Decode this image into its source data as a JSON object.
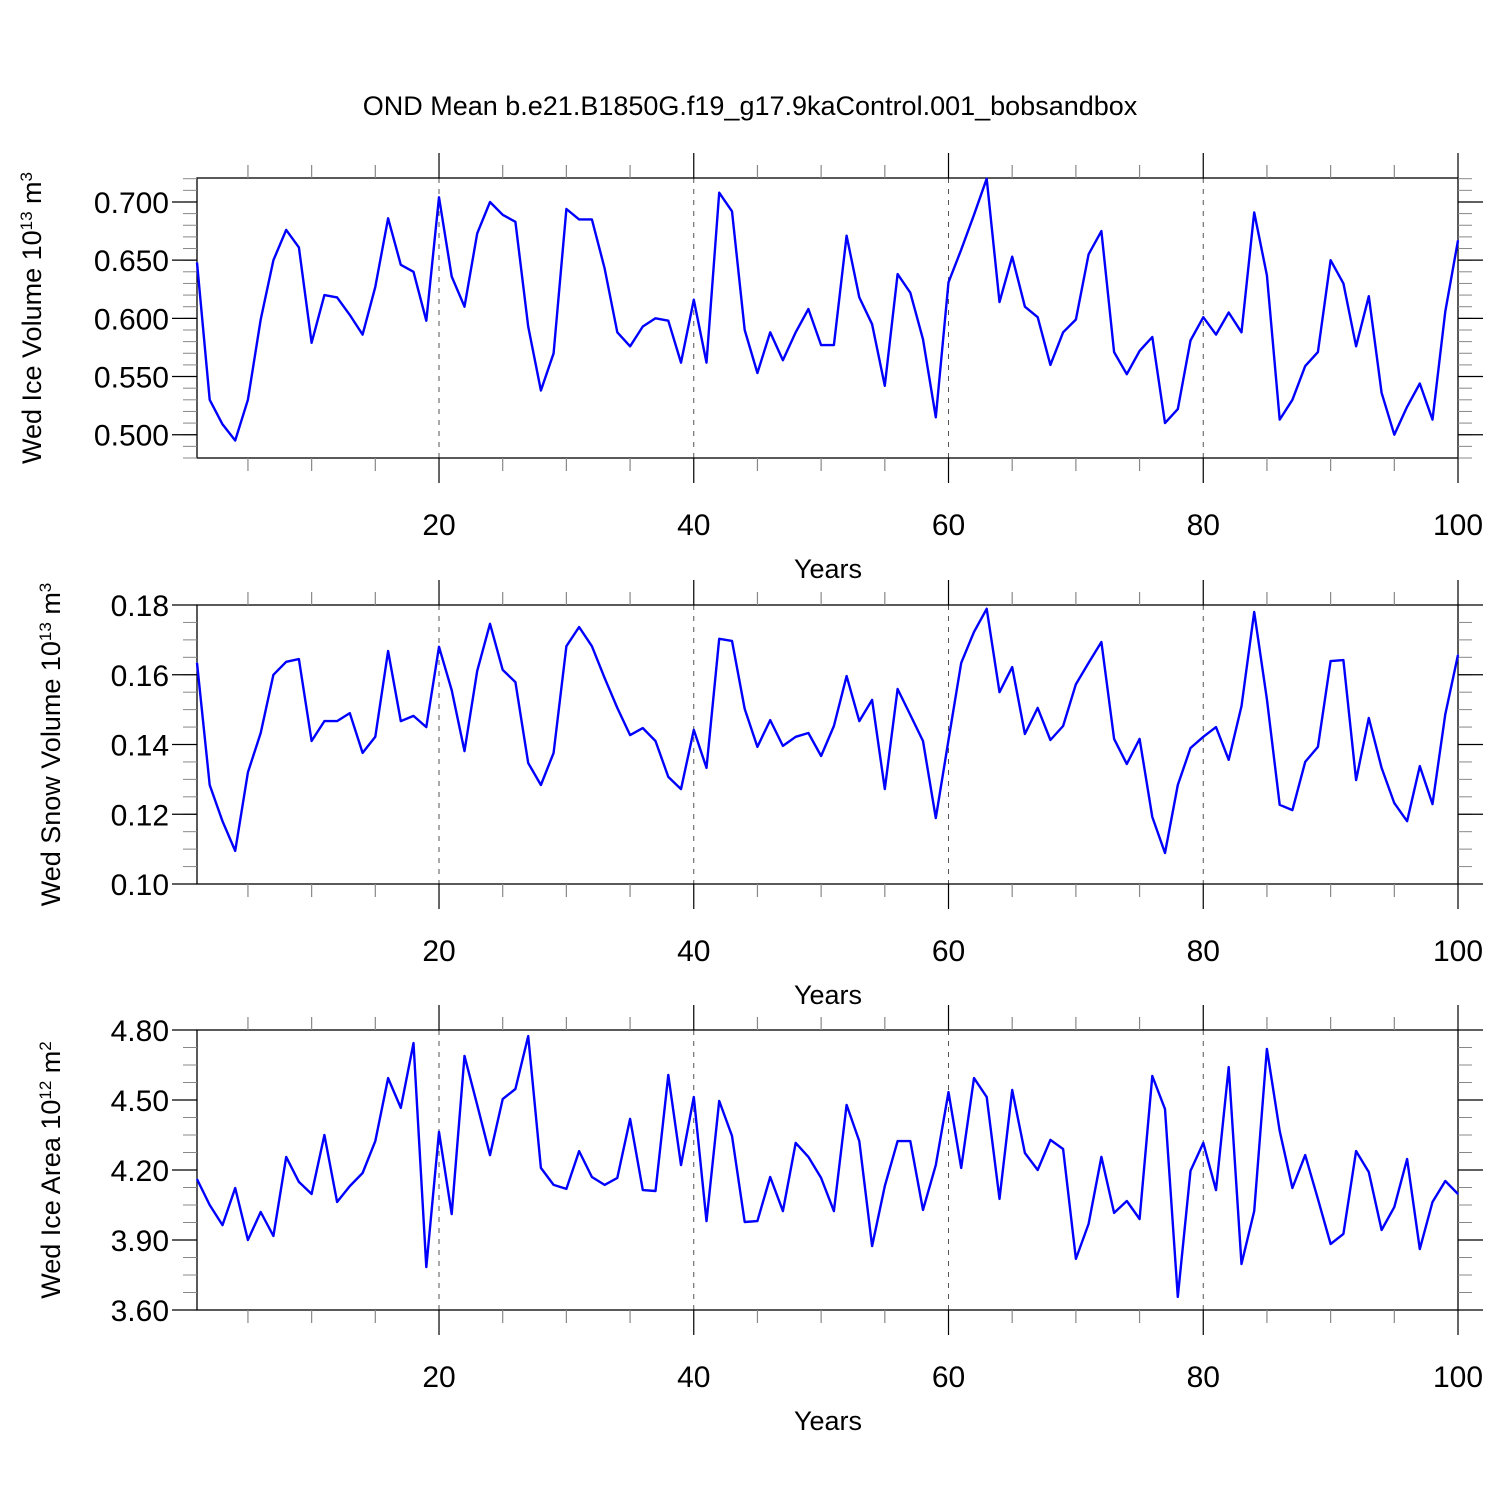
{
  "title": "OND Mean b.e21.B1850G.f19_g17.9kaControl.001_bobsandbox",
  "line_color": "#0000ff",
  "chart_data": [
    {
      "type": "line",
      "ylabel": "Wed Ice Volume 10",
      "ylabel_exp": "13",
      "ylabel_unit": " m",
      "ylabel_unit_exp": "3",
      "xlabel": "Years",
      "xlim": [
        1,
        100
      ],
      "ylim": [
        0.48,
        0.7206
      ],
      "xticks": [
        20,
        40,
        60,
        80,
        100
      ],
      "xtick_labels": [
        "20",
        "40",
        "60",
        "80",
        "100"
      ],
      "yticks": [
        0.5,
        0.55,
        0.6,
        0.65,
        0.7
      ],
      "ytick_labels": [
        "0.500",
        "0.550",
        "0.600",
        "0.650",
        "0.700"
      ],
      "yminor": 0.01,
      "values": [
        0.648,
        0.53,
        0.509,
        0.495,
        0.53,
        0.599,
        0.65,
        0.676,
        0.661,
        0.579,
        0.62,
        0.618,
        0.603,
        0.586,
        0.627,
        0.686,
        0.646,
        0.64,
        0.598,
        0.704,
        0.636,
        0.61,
        0.673,
        0.7,
        0.689,
        0.683,
        0.593,
        0.538,
        0.57,
        0.694,
        0.685,
        0.685,
        0.643,
        0.588,
        0.576,
        0.593,
        0.6,
        0.598,
        0.562,
        0.616,
        0.562,
        0.708,
        0.692,
        0.59,
        0.553,
        0.588,
        0.564,
        0.588,
        0.608,
        0.577,
        0.577,
        0.671,
        0.618,
        0.595,
        0.542,
        0.638,
        0.622,
        0.582,
        0.515,
        0.631,
        0.659,
        0.689,
        0.72,
        0.614,
        0.653,
        0.61,
        0.601,
        0.56,
        0.588,
        0.599,
        0.655,
        0.675,
        0.571,
        0.552,
        0.572,
        0.584,
        0.51,
        0.522,
        0.581,
        0.601,
        0.586,
        0.605,
        0.588,
        0.691,
        0.637,
        0.513,
        0.53,
        0.559,
        0.571,
        0.65,
        0.63,
        0.576,
        0.619,
        0.536,
        0.5,
        0.524,
        0.544,
        0.513,
        0.606,
        0.667
      ]
    },
    {
      "type": "line",
      "ylabel": "Wed Snow Volume 10",
      "ylabel_exp": "13",
      "ylabel_unit": " m",
      "ylabel_unit_exp": "3",
      "xlabel": "Years",
      "xlim": [
        1,
        100
      ],
      "ylim": [
        0.1,
        0.18
      ],
      "xticks": [
        20,
        40,
        60,
        80,
        100
      ],
      "xtick_labels": [
        "20",
        "40",
        "60",
        "80",
        "100"
      ],
      "yticks": [
        0.1,
        0.12,
        0.14,
        0.16,
        0.18
      ],
      "ytick_labels": [
        "0.10",
        "0.12",
        "0.14",
        "0.16",
        "0.18"
      ],
      "yminor": 0.005,
      "values": [
        0.1634,
        0.1284,
        0.118,
        0.1095,
        0.132,
        0.1433,
        0.16,
        0.1637,
        0.1645,
        0.141,
        0.1467,
        0.1467,
        0.149,
        0.1376,
        0.1422,
        0.1668,
        0.1467,
        0.1482,
        0.145,
        0.168,
        0.1556,
        0.1381,
        0.1611,
        0.1746,
        0.1614,
        0.1579,
        0.1347,
        0.1284,
        0.1376,
        0.1682,
        0.1737,
        0.1682,
        0.1591,
        0.1505,
        0.1427,
        0.1447,
        0.141,
        0.1307,
        0.1272,
        0.1442,
        0.1333,
        0.1703,
        0.1697,
        0.1502,
        0.1393,
        0.147,
        0.1396,
        0.1422,
        0.1433,
        0.1367,
        0.1453,
        0.1596,
        0.1467,
        0.1528,
        0.1272,
        0.1559,
        0.1485,
        0.141,
        0.1189,
        0.1413,
        0.1634,
        0.1723,
        0.1789,
        0.155,
        0.1622,
        0.143,
        0.1505,
        0.1413,
        0.1453,
        0.1573,
        0.1634,
        0.1694,
        0.1416,
        0.1344,
        0.1416,
        0.1192,
        0.1089,
        0.1284,
        0.139,
        0.1422,
        0.145,
        0.1356,
        0.151,
        0.178,
        0.153,
        0.1227,
        0.1212,
        0.135,
        0.1393,
        0.1639,
        0.1642,
        0.1298,
        0.1476,
        0.1333,
        0.1232,
        0.118,
        0.1338,
        0.1229,
        0.1487,
        0.1657
      ]
    },
    {
      "type": "line",
      "ylabel": "Wed Ice Area 10",
      "ylabel_exp": "12",
      "ylabel_unit": " m",
      "ylabel_unit_exp": "2",
      "xlabel": "Years",
      "xlim": [
        1,
        100
      ],
      "ylim": [
        3.6,
        4.8
      ],
      "xticks": [
        20,
        40,
        60,
        80,
        100
      ],
      "xtick_labels": [
        "20",
        "40",
        "60",
        "80",
        "100"
      ],
      "yticks": [
        3.6,
        3.9,
        4.2,
        4.5,
        4.8
      ],
      "ytick_labels": [
        "3.60",
        "3.90",
        "4.20",
        "4.50",
        "4.80"
      ],
      "yminor": 0.075,
      "values": [
        4.161,
        4.05,
        3.964,
        4.123,
        3.9,
        4.02,
        3.917,
        4.256,
        4.149,
        4.097,
        4.35,
        4.063,
        4.131,
        4.187,
        4.324,
        4.594,
        4.466,
        4.744,
        3.784,
        4.363,
        4.011,
        4.689,
        4.479,
        4.264,
        4.504,
        4.547,
        4.774,
        4.209,
        4.136,
        4.119,
        4.281,
        4.17,
        4.136,
        4.166,
        4.419,
        4.114,
        4.11,
        4.607,
        4.221,
        4.513,
        3.981,
        4.496,
        4.346,
        3.977,
        3.981,
        4.17,
        4.024,
        4.316,
        4.256,
        4.166,
        4.024,
        4.479,
        4.324,
        3.874,
        4.131,
        4.324,
        4.324,
        4.029,
        4.221,
        4.534,
        4.209,
        4.594,
        4.513,
        4.076,
        4.543,
        4.273,
        4.2,
        4.329,
        4.29,
        3.819,
        3.969,
        4.256,
        4.016,
        4.067,
        3.99,
        4.603,
        4.461,
        3.656,
        4.196,
        4.316,
        4.114,
        4.641,
        3.797,
        4.024,
        4.719,
        4.367,
        4.123,
        4.264,
        4.076,
        3.883,
        3.926,
        4.281,
        4.191,
        3.943,
        4.041,
        4.247,
        3.861,
        4.063,
        4.153,
        4.097
      ]
    }
  ]
}
